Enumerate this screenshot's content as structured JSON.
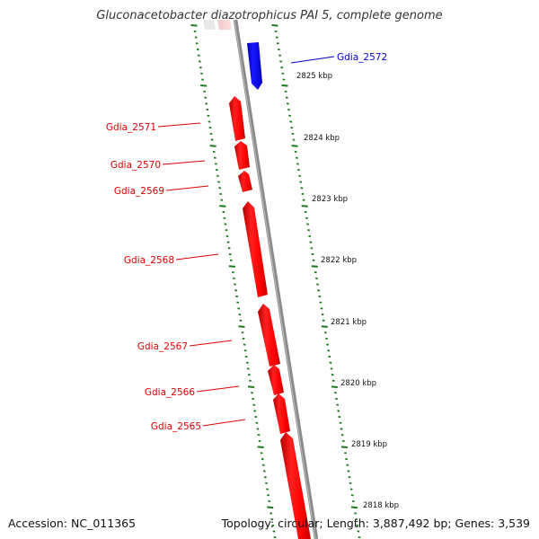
{
  "title": "Gluconacetobacter diazotrophicus PAI 5, complete genome",
  "footer": {
    "accession": "Accession: NC_011365",
    "info": "Topology: circular; Length: 3,887,492 bp; Genes: 3,539"
  },
  "colors": {
    "forward_gene": "#0000ff",
    "reverse_gene": "#ff0000",
    "tick": "#1a7a1a",
    "backbone": "#8a8a8a"
  },
  "genes_forward": [
    {
      "label": "Gdia_2572"
    }
  ],
  "genes_reverse": [
    {
      "label": "Gdia_2571"
    },
    {
      "label": "Gdia_2570"
    },
    {
      "label": "Gdia_2569"
    },
    {
      "label": "Gdia_2568"
    },
    {
      "label": "Gdia_2567"
    },
    {
      "label": "Gdia_2566"
    },
    {
      "label": "Gdia_2565"
    }
  ],
  "ticks": [
    {
      "label": "2825 kbp"
    },
    {
      "label": "2824 kbp"
    },
    {
      "label": "2823 kbp"
    },
    {
      "label": "2822 kbp"
    },
    {
      "label": "2821 kbp"
    },
    {
      "label": "2820 kbp"
    },
    {
      "label": "2819 kbp"
    },
    {
      "label": "2818 kbp"
    }
  ]
}
